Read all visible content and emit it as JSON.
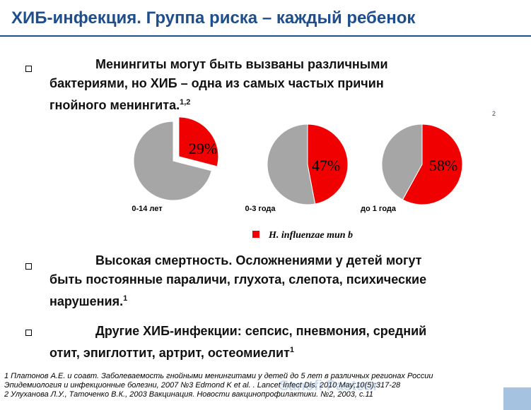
{
  "slide": {
    "title": "ХИБ-инфекция. Группа риска – каждый ребенок",
    "slide_number": "2",
    "watermark": "Sanofi Pasteur",
    "accent_color": "#1f4e8c"
  },
  "bullets": [
    {
      "lines": [
        "Менингиты могут быть вызваны различными",
        "бактериями, но ХИБ – одна из самых частых причин",
        "гнойного менингита."
      ],
      "ref": "1,2"
    },
    {
      "lines": [
        "Высокая смертность. Осложнениями у детей могут",
        "быть постоянные параличи, глухота, слепота, психические",
        "нарушения."
      ],
      "ref": "1"
    },
    {
      "lines": [
        "Другие ХИБ-инфекции: сепсис, пневмония, средний",
        "отит, эпиглоттит, артрит, остеомиелит"
      ],
      "ref": "1"
    }
  ],
  "chart_data": {
    "type": "pie",
    "legend": "H. influenzae тип b",
    "legend_placement": "bottom",
    "colors": {
      "hib": "#f00000",
      "other": "#a6a6a6"
    },
    "pies": [
      {
        "label": "0-14 лет",
        "hib_percent": 29,
        "value_label": "29%"
      },
      {
        "label": "0-3 года",
        "hib_percent": 47,
        "value_label": "47%"
      },
      {
        "label": "до 1 года",
        "hib_percent": 58,
        "value_label": "58%"
      }
    ]
  },
  "footnotes": [
    "1 Платонов А.Е. и соавт. Заболеваемость гнойными менингитами у детей до 5 лет в различных регионах России",
    "Эпидемиология и инфекционные болезни, 2007 №3 Edmond K et al. . Lancet Infect Dis. 2010 May;10(5):317-28",
    "2 Улуханова Л.У., Таточенко В.К., 2003 Вакцинация. Новости вакцинопрофилактики. №2, 2003, с.11"
  ]
}
